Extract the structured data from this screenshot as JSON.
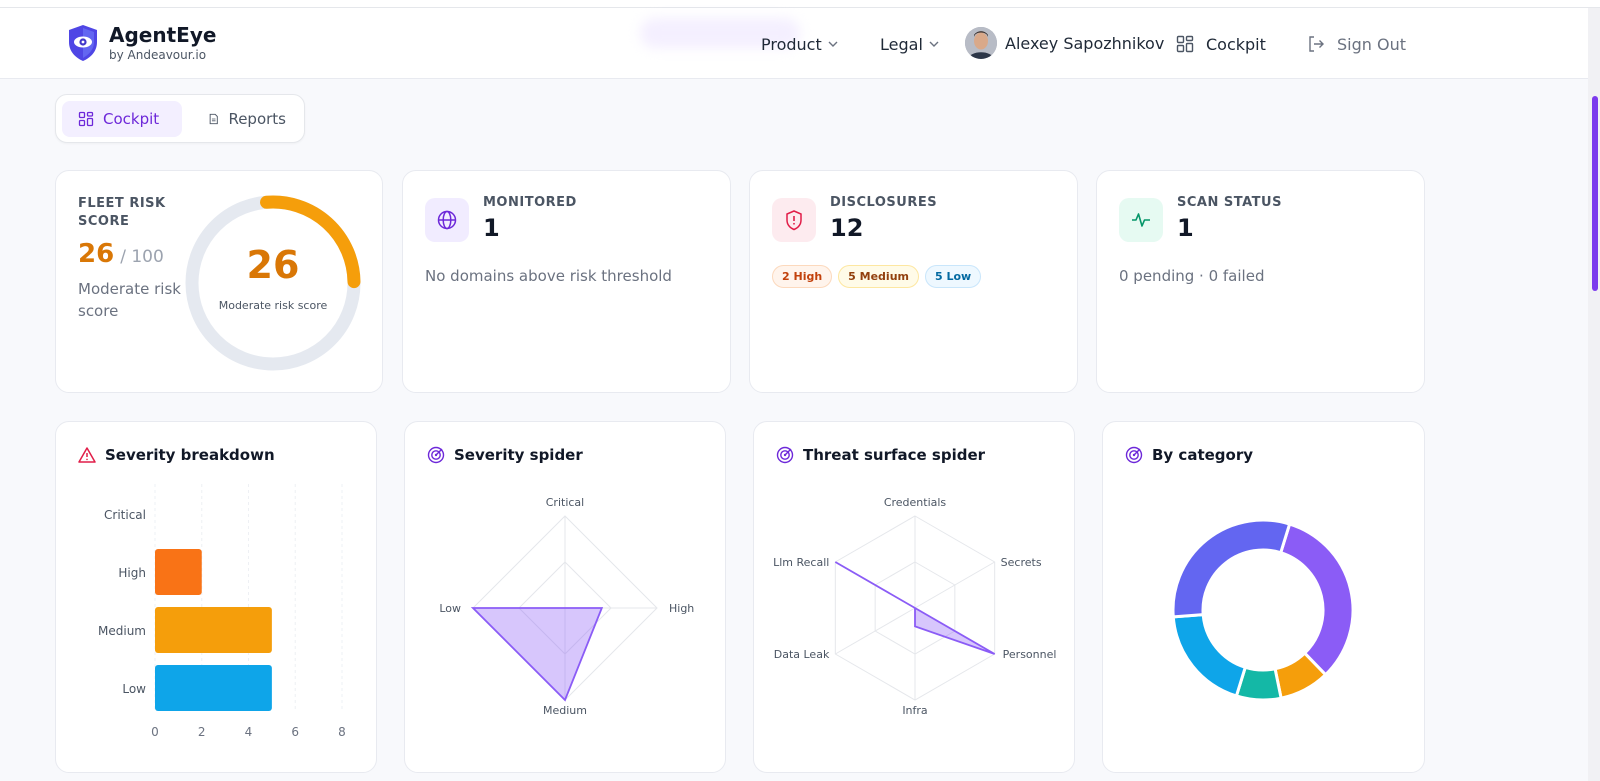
{
  "header": {
    "brand_name": "AgentEye",
    "brand_sub": "by Andeavour.io",
    "nav_product": "Product",
    "nav_legal": "Legal",
    "user_name": "Alexey Sapozhnikov",
    "nav_cockpit": "Cockpit",
    "nav_signout": "Sign Out"
  },
  "tabs": {
    "cockpit": "Cockpit",
    "reports": "Reports"
  },
  "fleet_risk": {
    "label": "FLEET RISK SCORE",
    "score": "26",
    "max": "/ 100",
    "desc": "Moderate risk score",
    "gauge_value": "26",
    "gauge_caption": "Moderate risk score",
    "fraction": 0.26
  },
  "monitored": {
    "label": "MONITORED",
    "value": "1",
    "desc": "No domains above risk threshold"
  },
  "disclosures": {
    "label": "DISCLOSURES",
    "value": "12",
    "pill_high": "2 High",
    "pill_medium": "5 Medium",
    "pill_low": "5 Low"
  },
  "scan_status": {
    "label": "SCAN STATUS",
    "value": "1",
    "desc": "0 pending · 0 failed"
  },
  "chart_titles": {
    "severity_breakdown": "Severity breakdown",
    "severity_spider": "Severity spider",
    "threat_spider": "Threat surface spider",
    "by_category": "By category"
  },
  "chart_data": [
    {
      "type": "bar",
      "orientation": "horizontal",
      "title": "Severity breakdown",
      "categories": [
        "Critical",
        "High",
        "Medium",
        "Low"
      ],
      "values": [
        0,
        2,
        5,
        5
      ],
      "xlim": [
        0,
        8
      ],
      "xticks": [
        "0",
        "2",
        "4",
        "6",
        "8"
      ],
      "colors": [
        "#ef4444",
        "#f97316",
        "#f59e0b",
        "#0ea5e9"
      ]
    },
    {
      "type": "radar",
      "title": "Severity spider",
      "axes": [
        "Critical",
        "High",
        "Medium",
        "Low"
      ],
      "values": [
        0,
        2,
        5,
        5
      ],
      "max": 5,
      "color": "#8b5cf6"
    },
    {
      "type": "radar",
      "title": "Threat surface spider",
      "axes": [
        "Credentials",
        "Secrets",
        "Personnel",
        "Infra",
        "Data Leak",
        "Llm Recall"
      ],
      "values": [
        0,
        0,
        5,
        1,
        0,
        5
      ],
      "max": 5,
      "color": "#8b5cf6"
    },
    {
      "type": "pie",
      "donut": true,
      "title": "By category",
      "values": [
        33,
        9,
        8,
        19,
        31
      ],
      "colors": [
        "#8b5cf6",
        "#f59e0b",
        "#14b8a6",
        "#0ea5e9",
        "#6366f1"
      ]
    }
  ]
}
